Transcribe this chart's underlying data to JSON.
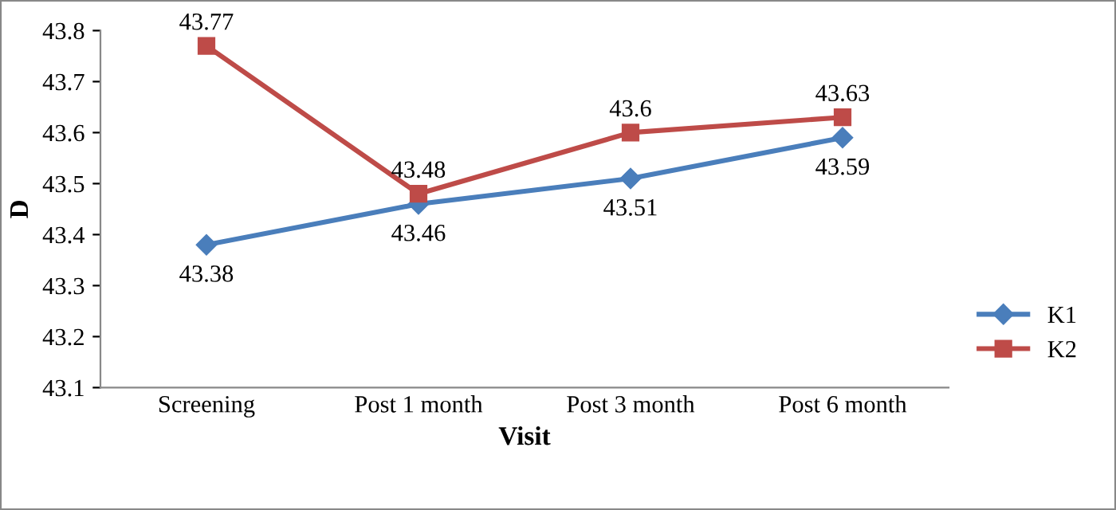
{
  "chart_data": {
    "type": "line",
    "xlabel": "Visit",
    "ylabel": "D",
    "categories": [
      "Screening",
      "Post 1 month",
      "Post 3 month",
      "Post 6 month"
    ],
    "series": [
      {
        "name": "K1",
        "color": "#4a7ebb",
        "marker": "diamond",
        "values": [
          43.38,
          43.46,
          43.51,
          43.59
        ]
      },
      {
        "name": "K2",
        "color": "#be4b48",
        "marker": "square",
        "values": [
          43.77,
          43.48,
          43.6,
          43.63
        ]
      }
    ],
    "ylim": [
      43.1,
      43.8
    ],
    "yticks": [
      43.1,
      43.2,
      43.3,
      43.4,
      43.5,
      43.6,
      43.7,
      43.8
    ],
    "grid": false,
    "legend": "right",
    "data_labels": true,
    "line_style": "solid"
  }
}
